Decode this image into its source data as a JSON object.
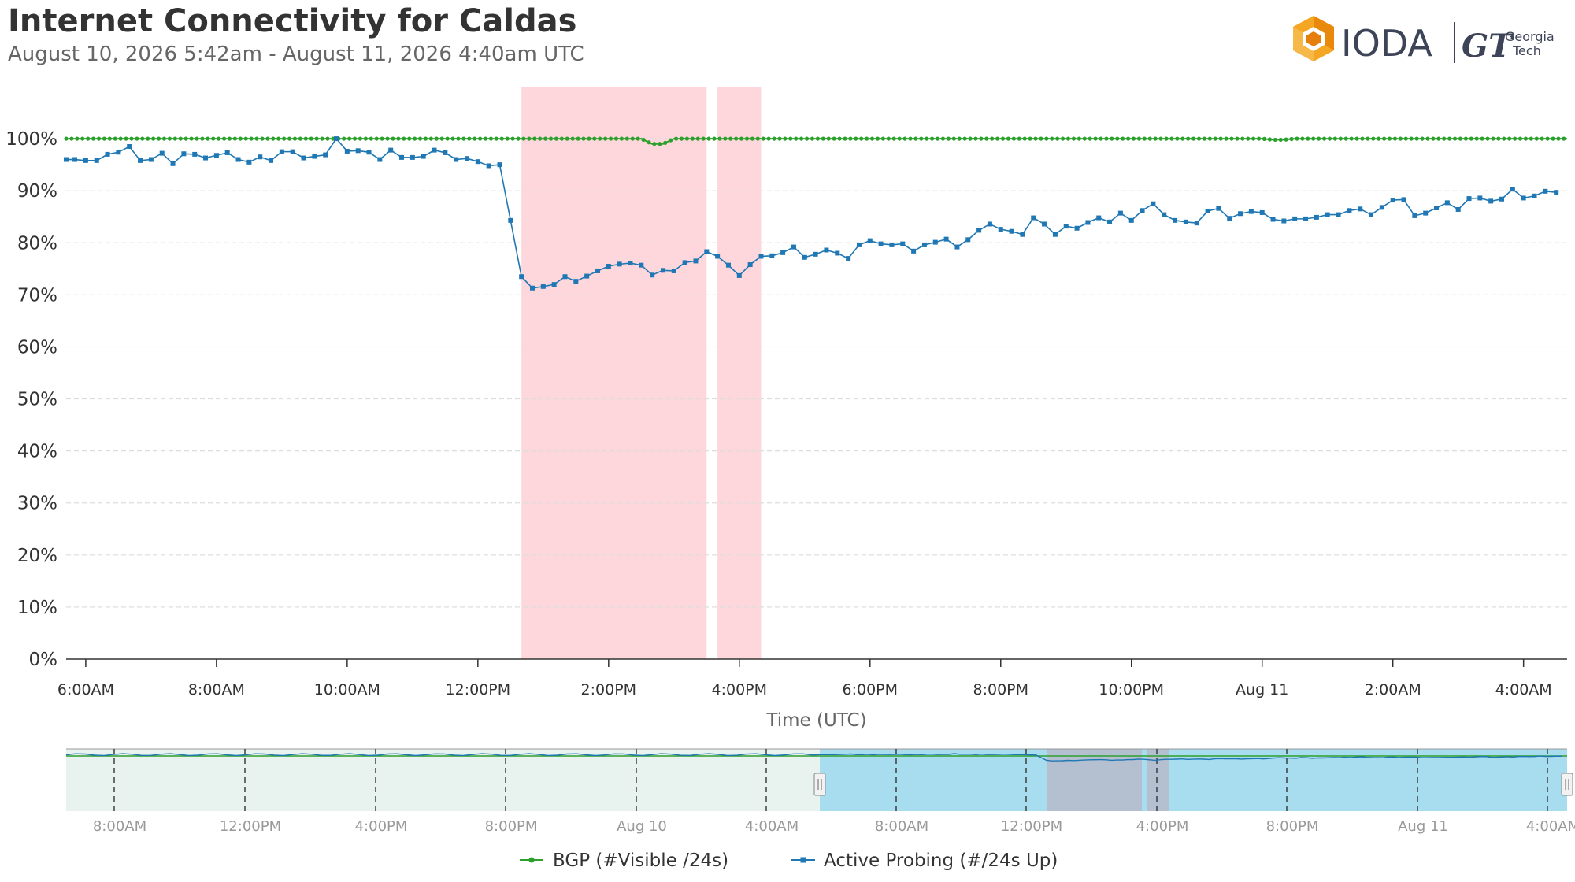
{
  "header": {
    "title": "Internet Connectivity for Caldas",
    "subtitle": "August 10, 2026 5:42am - August 11, 2026 4:40am UTC"
  },
  "logo": {
    "ioda_text": "IODA",
    "gt_mark": "GT",
    "gt_line1": "Georgia",
    "gt_line2": "Tech"
  },
  "colors": {
    "bgp": "#2ca02c",
    "probing": "#1f77b4",
    "outage": "#fdd7dc",
    "navigator_selection": "#a8dcef"
  },
  "chart_data": {
    "type": "line",
    "xlabel": "Time (UTC)",
    "ylabel": "",
    "ylim": [
      0,
      110
    ],
    "y_ticks": [
      0,
      10,
      20,
      30,
      40,
      50,
      60,
      70,
      80,
      90,
      100
    ],
    "y_tick_labels": [
      "0%",
      "10%",
      "20%",
      "30%",
      "40%",
      "50%",
      "60%",
      "70%",
      "80%",
      "90%",
      "100%"
    ],
    "xlim": [
      "2026-08-10T05:42",
      "2026-08-11T04:40"
    ],
    "x_ticks": [
      "2026-08-10T06:00",
      "2026-08-10T08:00",
      "2026-08-10T10:00",
      "2026-08-10T12:00",
      "2026-08-10T14:00",
      "2026-08-10T16:00",
      "2026-08-10T18:00",
      "2026-08-10T20:00",
      "2026-08-10T22:00",
      "2026-08-11T00:00",
      "2026-08-11T02:00",
      "2026-08-11T04:00"
    ],
    "x_tick_labels": [
      "6:00AM",
      "8:00AM",
      "10:00AM",
      "12:00PM",
      "2:00PM",
      "4:00PM",
      "6:00PM",
      "8:00PM",
      "10:00PM",
      "Aug 11",
      "2:00AM",
      "4:00AM"
    ],
    "grid": true,
    "legend_position": "bottom-center",
    "outages": [
      {
        "start": "2026-08-10T12:40",
        "end": "2026-08-10T15:30"
      },
      {
        "start": "2026-08-10T15:40",
        "end": "2026-08-10T16:20"
      }
    ],
    "series": [
      {
        "name": "BGP (#Visible /24s)",
        "color": "#2ca02c",
        "points": [
          [
            "2026-08-10T05:42",
            100
          ],
          [
            "2026-08-10T14:30",
            100
          ],
          [
            "2026-08-10T14:40",
            99
          ],
          [
            "2026-08-10T14:50",
            99
          ],
          [
            "2026-08-10T15:00",
            100
          ],
          [
            "2026-08-11T00:00",
            100
          ],
          [
            "2026-08-11T00:10",
            99.8
          ],
          [
            "2026-08-11T00:20",
            99.8
          ],
          [
            "2026-08-11T00:30",
            100
          ],
          [
            "2026-08-11T04:40",
            100
          ]
        ],
        "marker_interval_minutes": 5
      },
      {
        "name": "Active Probing (#/24s Up)",
        "color": "#1f77b4",
        "points": [
          [
            "2026-08-10T05:42",
            96
          ],
          [
            "2026-08-10T05:50",
            96
          ],
          [
            "2026-08-10T06:00",
            95.8
          ],
          [
            "2026-08-10T06:10",
            95.8
          ],
          [
            "2026-08-10T06:20",
            97
          ],
          [
            "2026-08-10T06:30",
            97.4
          ],
          [
            "2026-08-10T06:40",
            98.5
          ],
          [
            "2026-08-10T06:50",
            95.8
          ],
          [
            "2026-08-10T07:00",
            96
          ],
          [
            "2026-08-10T07:10",
            97.2
          ],
          [
            "2026-08-10T07:20",
            95.2
          ],
          [
            "2026-08-10T07:30",
            97.1
          ],
          [
            "2026-08-10T07:40",
            97
          ],
          [
            "2026-08-10T07:50",
            96.3
          ],
          [
            "2026-08-10T08:00",
            96.8
          ],
          [
            "2026-08-10T08:10",
            97.3
          ],
          [
            "2026-08-10T08:20",
            96
          ],
          [
            "2026-08-10T08:30",
            95.5
          ],
          [
            "2026-08-10T08:40",
            96.5
          ],
          [
            "2026-08-10T08:50",
            95.8
          ],
          [
            "2026-08-10T09:00",
            97.5
          ],
          [
            "2026-08-10T09:10",
            97.5
          ],
          [
            "2026-08-10T09:20",
            96.3
          ],
          [
            "2026-08-10T09:30",
            96.6
          ],
          [
            "2026-08-10T09:40",
            96.9
          ],
          [
            "2026-08-10T09:50",
            100
          ],
          [
            "2026-08-10T10:00",
            97.6
          ],
          [
            "2026-08-10T10:10",
            97.7
          ],
          [
            "2026-08-10T10:20",
            97.4
          ],
          [
            "2026-08-10T10:30",
            96
          ],
          [
            "2026-08-10T10:40",
            97.8
          ],
          [
            "2026-08-10T10:50",
            96.4
          ],
          [
            "2026-08-10T11:00",
            96.4
          ],
          [
            "2026-08-10T11:10",
            96.6
          ],
          [
            "2026-08-10T11:20",
            97.8
          ],
          [
            "2026-08-10T11:30",
            97.3
          ],
          [
            "2026-08-10T11:40",
            96
          ],
          [
            "2026-08-10T11:50",
            96.2
          ],
          [
            "2026-08-10T12:00",
            95.6
          ],
          [
            "2026-08-10T12:10",
            94.8
          ],
          [
            "2026-08-10T12:20",
            95
          ],
          [
            "2026-08-10T12:30",
            84.3
          ],
          [
            "2026-08-10T12:40",
            73.5
          ],
          [
            "2026-08-10T12:50",
            71.3
          ],
          [
            "2026-08-10T13:00",
            71.6
          ],
          [
            "2026-08-10T13:10",
            72
          ],
          [
            "2026-08-10T13:20",
            73.5
          ],
          [
            "2026-08-10T13:30",
            72.6
          ],
          [
            "2026-08-10T13:40",
            73.6
          ],
          [
            "2026-08-10T13:50",
            74.6
          ],
          [
            "2026-08-10T14:00",
            75.5
          ],
          [
            "2026-08-10T14:10",
            75.9
          ],
          [
            "2026-08-10T14:20",
            76.1
          ],
          [
            "2026-08-10T14:30",
            75.7
          ],
          [
            "2026-08-10T14:40",
            73.8
          ],
          [
            "2026-08-10T14:50",
            74.7
          ],
          [
            "2026-08-10T15:00",
            74.6
          ],
          [
            "2026-08-10T15:10",
            76.2
          ],
          [
            "2026-08-10T15:20",
            76.5
          ],
          [
            "2026-08-10T15:30",
            78.3
          ],
          [
            "2026-08-10T15:40",
            77.4
          ],
          [
            "2026-08-10T15:50",
            75.7
          ],
          [
            "2026-08-10T16:00",
            73.7
          ],
          [
            "2026-08-10T16:10",
            75.8
          ],
          [
            "2026-08-10T16:20",
            77.4
          ],
          [
            "2026-08-10T16:30",
            77.5
          ],
          [
            "2026-08-10T16:40",
            78.1
          ],
          [
            "2026-08-10T16:50",
            79.2
          ],
          [
            "2026-08-10T17:00",
            77.2
          ],
          [
            "2026-08-10T17:10",
            77.8
          ],
          [
            "2026-08-10T17:20",
            78.6
          ],
          [
            "2026-08-10T17:30",
            78
          ],
          [
            "2026-08-10T17:40",
            77
          ],
          [
            "2026-08-10T17:50",
            79.6
          ],
          [
            "2026-08-10T18:00",
            80.4
          ],
          [
            "2026-08-10T18:10",
            79.8
          ],
          [
            "2026-08-10T18:20",
            79.6
          ],
          [
            "2026-08-10T18:30",
            79.8
          ],
          [
            "2026-08-10T18:40",
            78.4
          ],
          [
            "2026-08-10T18:50",
            79.6
          ],
          [
            "2026-08-10T19:00",
            80.1
          ],
          [
            "2026-08-10T19:10",
            80.7
          ],
          [
            "2026-08-10T19:20",
            79.2
          ],
          [
            "2026-08-10T19:30",
            80.6
          ],
          [
            "2026-08-10T19:40",
            82.4
          ],
          [
            "2026-08-10T19:50",
            83.6
          ],
          [
            "2026-08-10T20:00",
            82.6
          ],
          [
            "2026-08-10T20:10",
            82.2
          ],
          [
            "2026-08-10T20:20",
            81.6
          ],
          [
            "2026-08-10T20:30",
            84.8
          ],
          [
            "2026-08-10T20:40",
            83.6
          ],
          [
            "2026-08-10T20:50",
            81.6
          ],
          [
            "2026-08-10T21:00",
            83.2
          ],
          [
            "2026-08-10T21:10",
            82.8
          ],
          [
            "2026-08-10T21:20",
            83.9
          ],
          [
            "2026-08-10T21:30",
            84.8
          ],
          [
            "2026-08-10T21:40",
            84
          ],
          [
            "2026-08-10T21:50",
            85.7
          ],
          [
            "2026-08-10T22:00",
            84.3
          ],
          [
            "2026-08-10T22:10",
            86.2
          ],
          [
            "2026-08-10T22:20",
            87.5
          ],
          [
            "2026-08-10T22:30",
            85.4
          ],
          [
            "2026-08-10T22:40",
            84.3
          ],
          [
            "2026-08-10T22:50",
            84
          ],
          [
            "2026-08-10T23:00",
            83.8
          ],
          [
            "2026-08-10T23:10",
            86.1
          ],
          [
            "2026-08-10T23:20",
            86.6
          ],
          [
            "2026-08-10T23:30",
            84.7
          ],
          [
            "2026-08-10T23:40",
            85.6
          ],
          [
            "2026-08-10T23:50",
            86
          ],
          [
            "2026-08-11T00:00",
            85.8
          ],
          [
            "2026-08-11T00:10",
            84.5
          ],
          [
            "2026-08-11T00:20",
            84.2
          ],
          [
            "2026-08-11T00:30",
            84.6
          ],
          [
            "2026-08-11T00:40",
            84.6
          ],
          [
            "2026-08-11T00:50",
            84.9
          ],
          [
            "2026-08-11T01:00",
            85.4
          ],
          [
            "2026-08-11T01:10",
            85.4
          ],
          [
            "2026-08-11T01:20",
            86.2
          ],
          [
            "2026-08-11T01:30",
            86.5
          ],
          [
            "2026-08-11T01:40",
            85.4
          ],
          [
            "2026-08-11T01:50",
            86.8
          ],
          [
            "2026-08-11T02:00",
            88.2
          ],
          [
            "2026-08-11T02:10",
            88.3
          ],
          [
            "2026-08-11T02:20",
            85.2
          ],
          [
            "2026-08-11T02:30",
            85.7
          ],
          [
            "2026-08-11T02:40",
            86.7
          ],
          [
            "2026-08-11T02:50",
            87.7
          ],
          [
            "2026-08-11T03:00",
            86.4
          ],
          [
            "2026-08-11T03:10",
            88.5
          ],
          [
            "2026-08-11T03:20",
            88.6
          ],
          [
            "2026-08-11T03:30",
            88
          ],
          [
            "2026-08-11T03:40",
            88.4
          ],
          [
            "2026-08-11T03:50",
            90.3
          ],
          [
            "2026-08-11T04:00",
            88.6
          ],
          [
            "2026-08-11T04:10",
            89
          ],
          [
            "2026-08-11T04:20",
            89.9
          ],
          [
            "2026-08-11T04:30",
            89.7
          ]
        ]
      }
    ],
    "navigator": {
      "x_tick_labels": [
        "8:00AM",
        "12:00PM",
        "4:00PM",
        "8:00PM",
        "Aug 10",
        "4:00AM",
        "8:00AM",
        "12:00PM",
        "4:00PM",
        "8:00PM",
        "Aug 11",
        "4:00AM"
      ]
    }
  }
}
